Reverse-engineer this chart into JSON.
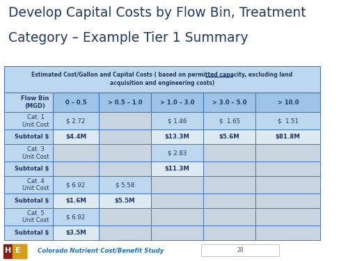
{
  "title_line1": "Develop Capital Costs by Flow Bin, Treatment",
  "title_line2": "Category – Example Tier 1 Summary",
  "title_color": "#1F3864",
  "title_fontsize": 13.5,
  "bg_color": "#FFFFFF",
  "right_bar_color": "#4472C4",
  "header_bg": "#BDD7EE",
  "header2_bg": "#9DC3E6",
  "row_label_bg": "#BDD7EE",
  "subtotal_label_bg": "#BDD7EE",
  "data_filled_bg": "#BDD7EE",
  "data_empty_bg": "#C8D4E0",
  "subtotal_filled_bg": "#DEEAF1",
  "subtotal_empty_bg": "#C8D4E0",
  "col_headers": [
    "Flow Bin\n(MGD)",
    "0 – 0.5",
    "> 0.5 – 1.0",
    "> 1.0 – 3.0",
    "> 3.0 – 5.0",
    "> 10.0"
  ],
  "rows": [
    {
      "label": "Cat. 1\nUnit Cost",
      "type": "data",
      "values": [
        "$ 2.72",
        "",
        "$ 1.46",
        "$  1.65",
        "$  1.51"
      ]
    },
    {
      "label": "Subtotal $",
      "type": "subtotal",
      "values": [
        "$4.4M",
        "",
        "$13.3M",
        "$5.6M",
        "$81.8M"
      ]
    },
    {
      "label": "Cat. 3\nUnit Cost",
      "type": "data",
      "values": [
        "",
        "",
        "$ 2.83",
        "",
        ""
      ]
    },
    {
      "label": "Subtotal $",
      "type": "subtotal",
      "values": [
        "",
        "",
        "$11.3M",
        "",
        ""
      ]
    },
    {
      "label": "Cat. 4\nUnit Cost",
      "type": "data",
      "values": [
        "$ 6.92",
        "$ 5.58",
        "",
        "",
        ""
      ]
    },
    {
      "label": "Subtotal $",
      "type": "subtotal",
      "values": [
        "$1.6M",
        "$5.5M",
        "",
        "",
        ""
      ]
    },
    {
      "label": "Cat. 5\nUnit Cost",
      "type": "data",
      "values": [
        "$ 6.92",
        "",
        "",
        "",
        ""
      ]
    },
    {
      "label": "Subtotal $",
      "type": "subtotal",
      "values": [
        "$3.5M",
        "",
        "",
        "",
        ""
      ]
    }
  ],
  "footer_text": "Colorado Nutrient Cost/Benefit Study",
  "page_num": "28",
  "text_color": "#1F3864",
  "border_color": "#4472C4"
}
